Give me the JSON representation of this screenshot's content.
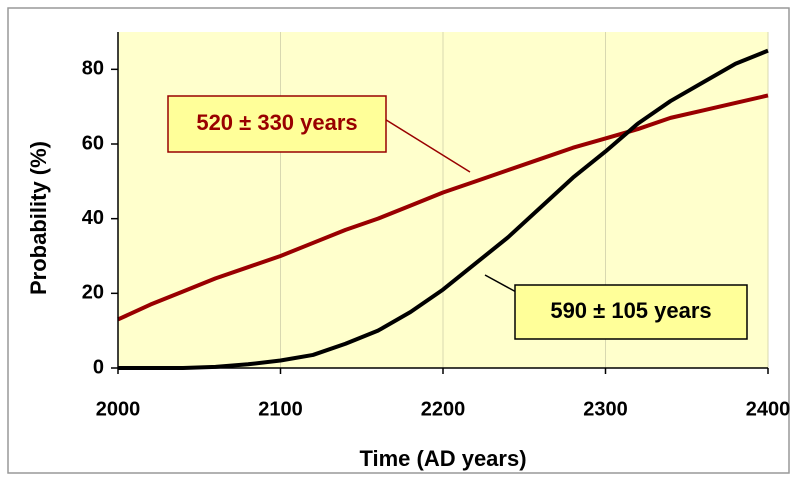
{
  "chart_data": {
    "type": "line",
    "x_label": "Time (AD years)",
    "y_label": "Probability (%)",
    "x": [
      2000,
      2020,
      2040,
      2060,
      2080,
      2100,
      2120,
      2140,
      2160,
      2180,
      2200,
      2220,
      2240,
      2260,
      2280,
      2300,
      2320,
      2340,
      2360,
      2380,
      2400
    ],
    "series": [
      {
        "name": "520 ± 330 years",
        "color": "#990000",
        "values": [
          13,
          17,
          20.5,
          24,
          27,
          30,
          33.5,
          37,
          40,
          43.5,
          47,
          50,
          53,
          56,
          59,
          61.5,
          64,
          67,
          69,
          71,
          73
        ]
      },
      {
        "name": "590 ± 105 years",
        "color": "#000000",
        "values": [
          0,
          0,
          0,
          0.3,
          1,
          2,
          3.5,
          6.5,
          10,
          15,
          21,
          28,
          35,
          43,
          51,
          58,
          65.5,
          71.5,
          76.5,
          81.5,
          85
        ]
      }
    ],
    "xlim": [
      2000,
      2400
    ],
    "xticks": [
      2000,
      2100,
      2200,
      2300,
      2400
    ],
    "ylim": [
      0,
      90
    ],
    "yticks": [
      0,
      20,
      40,
      60,
      80
    ],
    "grid": true
  }
}
